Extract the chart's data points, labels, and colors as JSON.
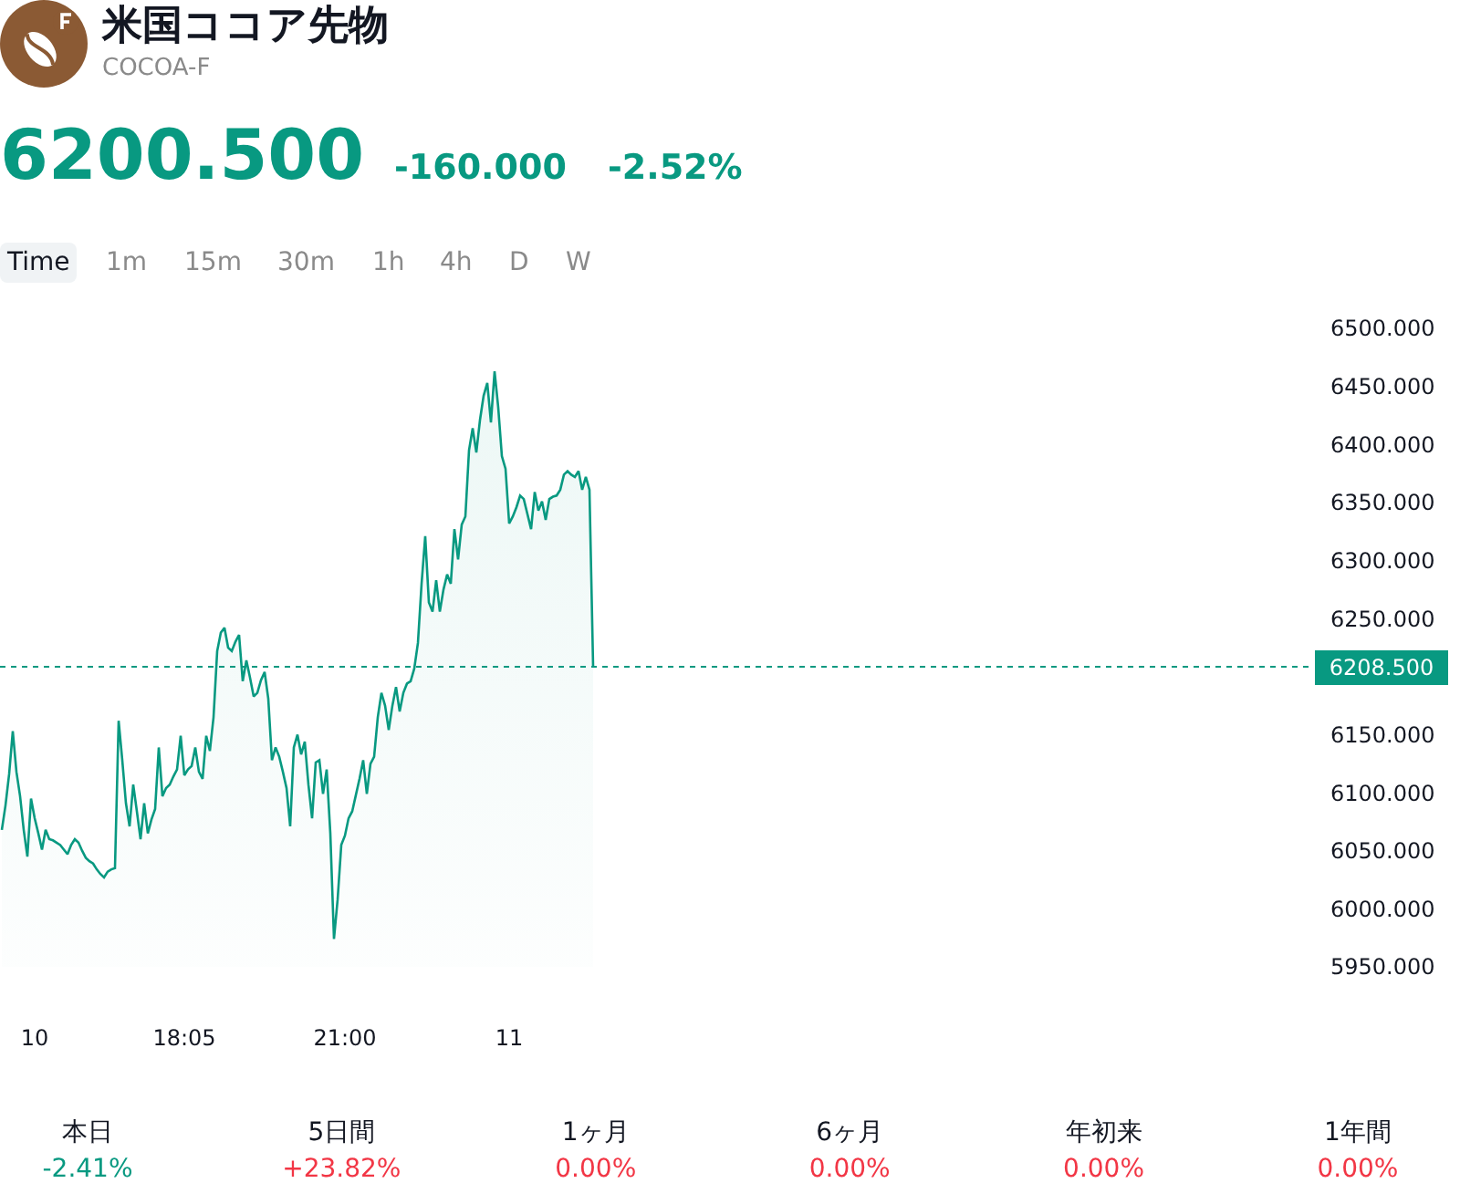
{
  "chart_data": {
    "type": "area",
    "title": "米国ココア先物",
    "subtitle": "COCOA-F",
    "annotations": [
      "6200.500",
      "-160.000",
      "-2.52%",
      "Time",
      "1m",
      "15m",
      "30m",
      "1h",
      "4h",
      "D",
      "W",
      "本日",
      "-2.41%",
      "5日間",
      "+23.82%",
      "1ヶ月",
      "0.00%",
      "6ヶ月",
      "0.00%",
      "年初来",
      "0.00%",
      "1年間",
      "0.00%"
    ],
    "categories": [
      null,
      null,
      null,
      null,
      null,
      null,
      null,
      null,
      null,
      "10",
      null,
      null,
      null,
      null,
      null,
      null,
      null,
      null,
      null,
      null,
      null,
      null,
      null,
      null,
      null,
      null,
      null,
      null,
      null,
      null,
      null,
      null,
      null,
      null,
      null,
      null,
      null,
      null,
      null,
      null,
      null,
      null,
      null,
      null,
      null,
      null,
      null,
      null,
      null,
      null,
      "18:05",
      null,
      null,
      null,
      null,
      null,
      null,
      null,
      null,
      null,
      null,
      null,
      null,
      null,
      null,
      null,
      null,
      null,
      null,
      null,
      null,
      null,
      null,
      null,
      null,
      null,
      null,
      null,
      null,
      null,
      null,
      null,
      null,
      null,
      null,
      null,
      null,
      null,
      null,
      null,
      null,
      null,
      null,
      null,
      "21:00",
      null,
      null,
      null,
      null,
      null,
      null,
      null,
      null,
      null,
      null,
      null,
      null,
      null,
      null,
      null,
      null,
      null,
      null,
      null,
      null,
      null,
      null,
      null,
      null,
      null,
      null,
      null,
      null,
      null,
      null,
      null,
      null,
      null,
      null,
      null,
      null,
      null,
      null,
      null,
      null,
      null,
      null,
      null,
      null,
      "11",
      null,
      null,
      null,
      null,
      null,
      null,
      null,
      null,
      null,
      null,
      null,
      null,
      null,
      null,
      null,
      null,
      null,
      null,
      null,
      null,
      null,
      null,
      null,
      null,
      null,
      null,
      null,
      null,
      null,
      null,
      null,
      null,
      null,
      null,
      null,
      null,
      null,
      null,
      null,
      null,
      null,
      null,
      null,
      null,
      null,
      null,
      null,
      null,
      null,
      null,
      null,
      null,
      null,
      null,
      null,
      null,
      null,
      null,
      null,
      null,
      null,
      null,
      null,
      null,
      null,
      null,
      null,
      null,
      null,
      null,
      null,
      null,
      null,
      null,
      null,
      null,
      null,
      null,
      null,
      null,
      null,
      null,
      null,
      null,
      null,
      null,
      null,
      null,
      null,
      null,
      null,
      null,
      null,
      null,
      null,
      null,
      null,
      null,
      null,
      null,
      null,
      null,
      null,
      null,
      null,
      null,
      null,
      null,
      null,
      null,
      null,
      null,
      null,
      null,
      null,
      null,
      null,
      null,
      null,
      null,
      null,
      null,
      null,
      null,
      null,
      null,
      null,
      null,
      null,
      null,
      null,
      null,
      null,
      null,
      null,
      null,
      null,
      null,
      null,
      null,
      null,
      null,
      null,
      null,
      null,
      null,
      null,
      null,
      null,
      null,
      null,
      null,
      null,
      null,
      null,
      null,
      null,
      null,
      null,
      null,
      null,
      null,
      null,
      null,
      null,
      null,
      null,
      null,
      null,
      null,
      null,
      null,
      null,
      null,
      null,
      null,
      null,
      null,
      null,
      null,
      null,
      null,
      null,
      null,
      null,
      null,
      null,
      null,
      null,
      null,
      null,
      null,
      null,
      null,
      null,
      null,
      null,
      null,
      null,
      null,
      null,
      null,
      null,
      null,
      null,
      null,
      null,
      null,
      null,
      null,
      null,
      null,
      null,
      null,
      null,
      null,
      null,
      null,
      null
    ],
    "values": [
      6068,
      6089,
      6116,
      6153,
      6118,
      6097,
      6068,
      6045,
      6095,
      6078,
      6065,
      6051,
      6068,
      6060,
      6059,
      6057,
      6055,
      6051,
      6047,
      6055,
      6060,
      6057,
      6050,
      6044,
      6041,
      6039,
      6034,
      6030,
      6027,
      6032,
      6034,
      6035,
      6162,
      6128,
      6091,
      6071,
      6107,
      6084,
      6060,
      6091,
      6065,
      6077,
      6086,
      6139,
      6097,
      6104,
      6107,
      6114,
      6120,
      6149,
      6115,
      6120,
      6123,
      6139,
      6118,
      6112,
      6149,
      6136,
      6165,
      6222,
      6238,
      6242,
      6225,
      6222,
      6230,
      6236,
      6196,
      6214,
      6199,
      6183,
      6186,
      6197,
      6204,
      6181,
      6128,
      6139,
      6131,
      6118,
      6104,
      6071,
      6139,
      6150,
      6133,
      6144,
      6107,
      6078,
      6126,
      6128,
      6099,
      6120,
      6065,
      5974,
      6008,
      6055,
      6063,
      6078,
      6084,
      6098,
      6112,
      6128,
      6099,
      6125,
      6131,
      6165,
      6186,
      6175,
      6154,
      6175,
      6191,
      6170,
      6186,
      6194,
      6196,
      6207,
      6229,
      6280,
      6321,
      6264,
      6256,
      6283,
      6256,
      6275,
      6288,
      6280,
      6327,
      6301,
      6331,
      6338,
      6395,
      6414,
      6393,
      6421,
      6442,
      6453,
      6419,
      6463,
      6432,
      6390,
      6379,
      6332,
      6338,
      6346,
      6356,
      6353,
      6340,
      6327,
      6359,
      6343,
      6351,
      6335,
      6353,
      6355,
      6356,
      6361,
      6374,
      6377,
      6374,
      6372,
      6377,
      6361,
      6372,
      6361,
      6208.5,
      null,
      null,
      null,
      null,
      null,
      null,
      null,
      null,
      null,
      null,
      null,
      null,
      null,
      null,
      null,
      null,
      null,
      null,
      null,
      null,
      null,
      null,
      null,
      null,
      null,
      null,
      null,
      null,
      null,
      null,
      null,
      null,
      null,
      null,
      null,
      null,
      null,
      null,
      null,
      null,
      null,
      null,
      null,
      null,
      null,
      null,
      null,
      null,
      null,
      null,
      null,
      null,
      null,
      null,
      null,
      null,
      null,
      null,
      null,
      null,
      null,
      null,
      null,
      null,
      null,
      null,
      null,
      null,
      null,
      null,
      null,
      null,
      null,
      null,
      null,
      null,
      null,
      null,
      null,
      null,
      null,
      null,
      null,
      null,
      null,
      null,
      null,
      null,
      null,
      null,
      null,
      null,
      null,
      null,
      null,
      null,
      null,
      null,
      null,
      null,
      null,
      null,
      null,
      null,
      null,
      null,
      null,
      null,
      null,
      null,
      null,
      null,
      null,
      null,
      null,
      null,
      null,
      null,
      null,
      null,
      null,
      null,
      null,
      null,
      null,
      null,
      null,
      null,
      null,
      null,
      null,
      null,
      null,
      null,
      null,
      null,
      null,
      null,
      null,
      null,
      null,
      null,
      null,
      null,
      null,
      null,
      null,
      null,
      null,
      null,
      null,
      null,
      null,
      null,
      null,
      null,
      null,
      null,
      null,
      null,
      null,
      null,
      null,
      null,
      null,
      null,
      null,
      null,
      null,
      null,
      null,
      null,
      null,
      null,
      null,
      null,
      null,
      null,
      null,
      null,
      null,
      null,
      null,
      null,
      null,
      null,
      null,
      null,
      null,
      null,
      null,
      null,
      null,
      null,
      null,
      null
    ],
    "color": "#089981",
    "ylim": [
      5950,
      6500
    ],
    "yticks": [
      {
        "value": 5950,
        "label": "5950.000"
      },
      {
        "value": 6000,
        "label": "6000.000"
      },
      {
        "value": 6050,
        "label": "6050.000"
      },
      {
        "value": 6100,
        "label": "6100.000"
      },
      {
        "value": 6150,
        "label": "6150.000"
      },
      {
        "value": 6250,
        "label": "6250.000"
      },
      {
        "value": 6300,
        "label": "6300.000"
      },
      {
        "value": 6350,
        "label": "6350.000"
      },
      {
        "value": 6400,
        "label": "6400.000"
      },
      {
        "value": 6450,
        "label": "6450.000"
      },
      {
        "value": 6500,
        "label": "6500.000"
      }
    ],
    "ref_lines": [
      {
        "axis": "y",
        "value": 6208.5,
        "label": "6208.500",
        "color": "#089981",
        "line_style": "dotted"
      }
    ],
    "grid": false
  }
}
